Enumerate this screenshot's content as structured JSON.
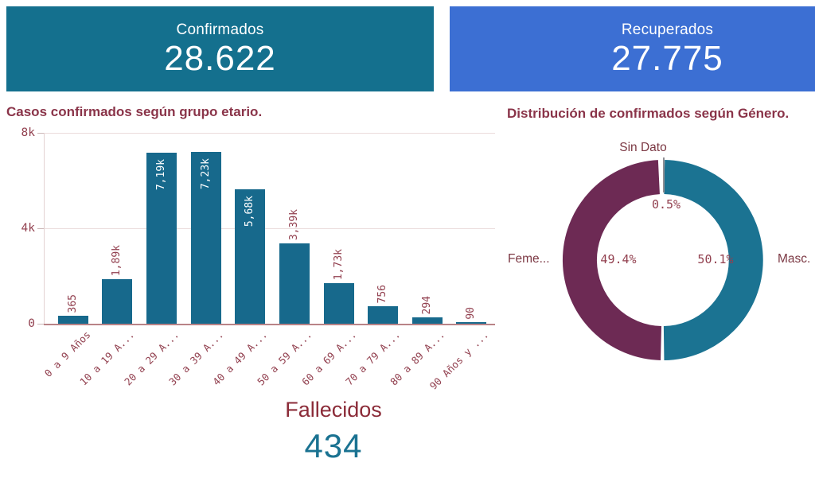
{
  "theme": {
    "teal_card_bg": "#14708E",
    "blue_card_bg": "#3C6FD3",
    "bar_color": "#17698C",
    "title_color": "#8A3449",
    "label_color": "#92404F",
    "grid_color": "#EBDCDC",
    "baseline_color": "#B98387"
  },
  "kpis": {
    "confirmed": {
      "label": "Confirmados",
      "value": "28.622"
    },
    "recovered": {
      "label": "Recuperados",
      "value": "27.775"
    },
    "deceased": {
      "label": "Fallecidos",
      "value": "434"
    }
  },
  "chart_data": [
    {
      "type": "bar",
      "title": "Casos confirmados según grupo etario.",
      "categories": [
        "0 a 9 Años",
        "10 a 19 A...",
        "20 a 29 A...",
        "30 a 39 A...",
        "40 a 49 A...",
        "50 a 59 A...",
        "60 a 69 A...",
        "70 a 79 A...",
        "80 a 89 A...",
        "90 Años y ..."
      ],
      "values": [
        365,
        1890,
        7190,
        7230,
        5680,
        3390,
        1730,
        756,
        294,
        90
      ],
      "value_labels": [
        "365",
        "1,89k",
        "7,19k",
        "7,23k",
        "5,68k",
        "3,39k",
        "1,73k",
        "756",
        "294",
        "90"
      ],
      "xlabel": "",
      "ylabel": "",
      "ylim": [
        0,
        8000
      ],
      "y_ticks": [
        {
          "value": 0,
          "label": "0"
        },
        {
          "value": 4000,
          "label": "4k"
        },
        {
          "value": 8000,
          "label": "8k"
        }
      ],
      "grid": "horizontal",
      "bar_color": "#17698C"
    },
    {
      "type": "pie",
      "donut": true,
      "title": "Distribución de confirmados según Género.",
      "slices": [
        {
          "label": "Masc.",
          "value": 50.1,
          "pct_label": "50.1%",
          "color": "#1B7392"
        },
        {
          "label": "Feme...",
          "value": 49.4,
          "pct_label": "49.4%",
          "color": "#6D2A54"
        },
        {
          "label": "Sin Dato",
          "value": 0.5,
          "pct_label": "0.5%",
          "color": null
        }
      ],
      "legend": "none"
    }
  ]
}
